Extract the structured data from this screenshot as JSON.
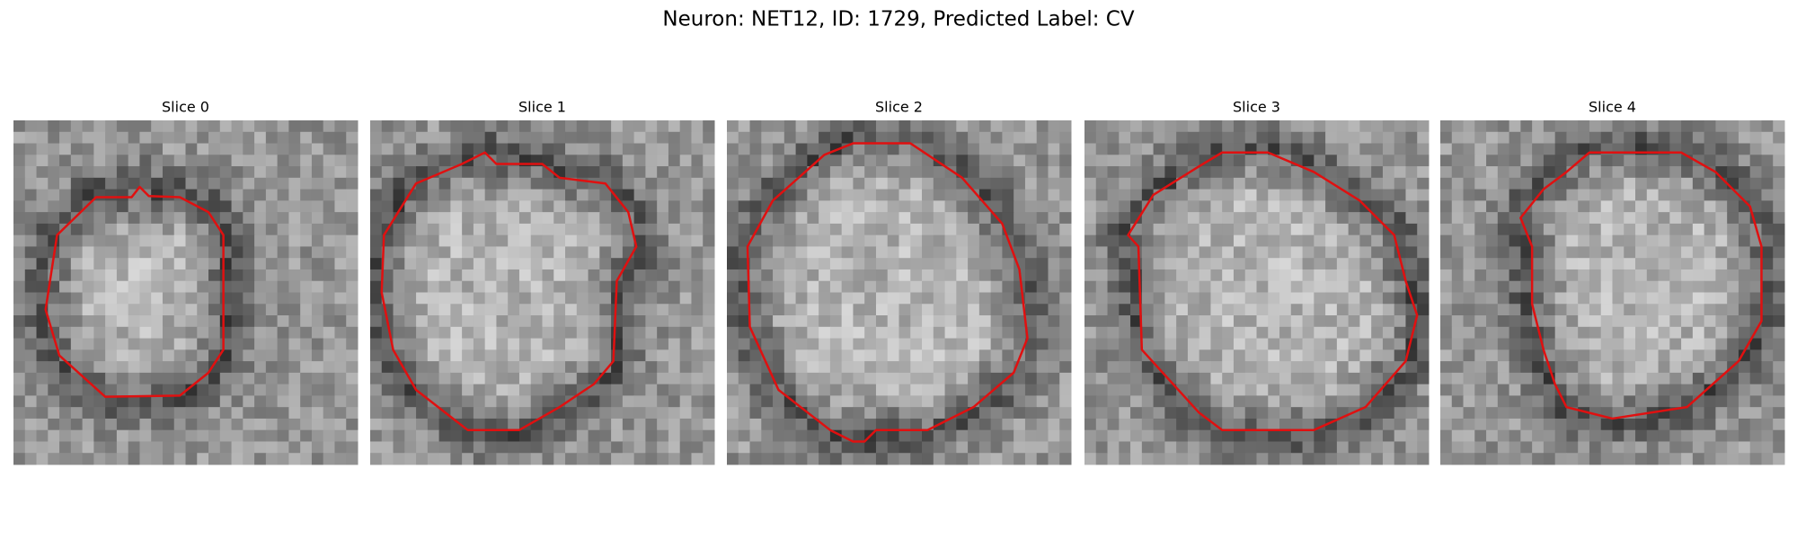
{
  "title": "Neuron: NET12, ID: 1729, Predicted Label: CV",
  "panels": [
    {
      "title": "Slice 0"
    },
    {
      "title": "Slice 1"
    },
    {
      "title": "Slice 2"
    },
    {
      "title": "Slice 3"
    },
    {
      "title": "Slice 4"
    }
  ]
}
